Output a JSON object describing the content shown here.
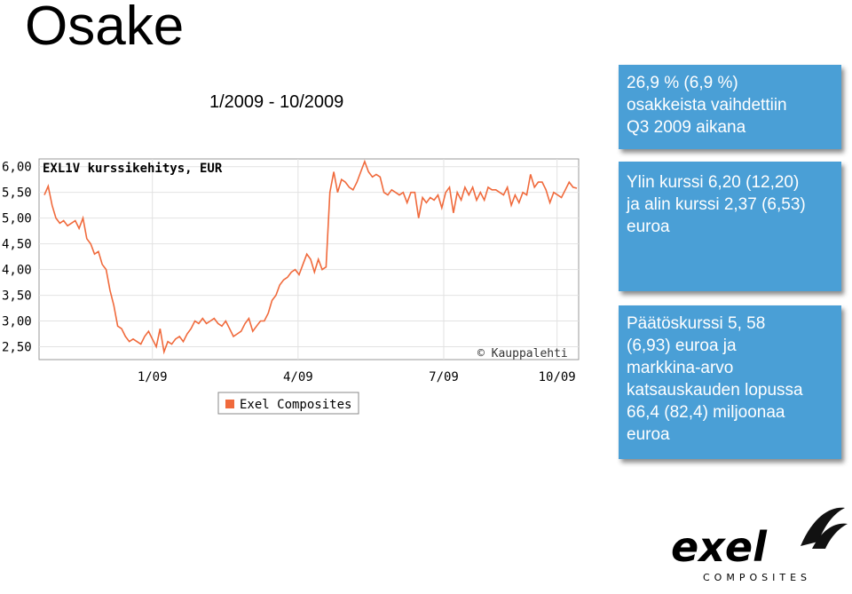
{
  "slide": {
    "title": "Osake",
    "period": "1/2009 - 10/2009"
  },
  "boxes": [
    {
      "lines": [
        "26,9 % (6,9 %)",
        "osakkeista vaihdettiin",
        "Q3 2009 aikana"
      ]
    },
    {
      "lines": [
        "Ylin kurssi 6,20 (12,20)",
        "ja alin kurssi 2,37 (6,53)",
        "euroa"
      ]
    },
    {
      "lines": [
        "Päätöskurssi 5, 58",
        "(6,93) euroa ja",
        "markkina-arvo",
        "katsauskauden lopussa",
        "66,4 (82,4) miljoonaa",
        "euroa"
      ]
    }
  ],
  "logo": {
    "word": "exel",
    "sub": "COMPOSITES",
    "color": "#000000"
  },
  "chart_data": {
    "type": "line",
    "title": "EXL1V kurssikehitys, EUR",
    "watermark": "© Kauppalehti",
    "ylim": [
      2.25,
      6.15
    ],
    "yticks": [
      "6,00",
      "5,50",
      "5,00",
      "4,50",
      "4,00",
      "3,50",
      "3,00",
      "2,50"
    ],
    "ytick_values": [
      6.0,
      5.5,
      5.0,
      4.5,
      4.0,
      3.5,
      3.0,
      2.5
    ],
    "xticks": [
      "1/09",
      "4/09",
      "7/09",
      "10/09"
    ],
    "xtick_positions": [
      0.21,
      0.48,
      0.75,
      0.96
    ],
    "legend": "top-left-below",
    "grid": true,
    "line_color": "#f06a3c",
    "series": [
      {
        "name": "Exel Composites",
        "values": [
          5.45,
          5.62,
          5.25,
          5.0,
          4.9,
          4.95,
          4.85,
          4.9,
          4.95,
          4.8,
          5.0,
          4.6,
          4.5,
          4.3,
          4.35,
          4.1,
          4.0,
          3.6,
          3.3,
          2.9,
          2.85,
          2.7,
          2.6,
          2.65,
          2.6,
          2.55,
          2.7,
          2.8,
          2.65,
          2.5,
          2.85,
          2.4,
          2.6,
          2.55,
          2.65,
          2.7,
          2.6,
          2.75,
          2.85,
          3.0,
          2.95,
          3.05,
          2.95,
          3.0,
          3.05,
          2.95,
          2.9,
          3.0,
          2.85,
          2.7,
          2.75,
          2.8,
          2.95,
          3.05,
          2.8,
          2.9,
          3.0,
          3.0,
          3.15,
          3.4,
          3.5,
          3.7,
          3.8,
          3.85,
          3.95,
          4.0,
          3.9,
          4.1,
          4.3,
          4.2,
          3.95,
          4.2,
          4.0,
          4.05,
          5.5,
          5.9,
          5.5,
          5.75,
          5.7,
          5.6,
          5.55,
          5.7,
          5.9,
          6.1,
          5.9,
          5.8,
          5.85,
          5.8,
          5.5,
          5.45,
          5.55,
          5.5,
          5.45,
          5.5,
          5.3,
          5.5,
          5.5,
          5.0,
          5.4,
          5.3,
          5.4,
          5.35,
          5.45,
          5.2,
          5.5,
          5.6,
          5.1,
          5.5,
          5.35,
          5.6,
          5.45,
          5.6,
          5.35,
          5.5,
          5.35,
          5.6,
          5.55,
          5.55,
          5.5,
          5.45,
          5.6,
          5.25,
          5.45,
          5.3,
          5.5,
          5.45,
          5.85,
          5.6,
          5.7,
          5.7,
          5.55,
          5.3,
          5.5,
          5.45,
          5.4,
          5.55,
          5.7,
          5.6,
          5.58
        ]
      }
    ]
  }
}
